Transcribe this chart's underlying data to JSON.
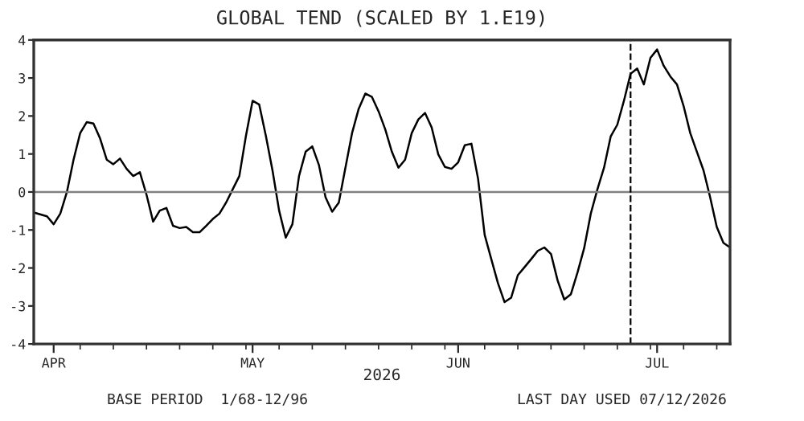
{
  "chart_data": {
    "type": "line",
    "title": "GLOBAL TEND (SCALED BY 1.E19)",
    "xlabel": "2026",
    "series": [
      {
        "color": "#000000",
        "x": [
          "2026-03-29",
          "2026-03-31",
          "2026-04-01",
          "2026-04-02",
          "2026-04-03",
          "2026-04-04",
          "2026-04-05",
          "2026-04-06",
          "2026-04-07",
          "2026-04-08",
          "2026-04-09",
          "2026-04-10",
          "2026-04-11",
          "2026-04-12",
          "2026-04-13",
          "2026-04-14",
          "2026-04-15",
          "2026-04-16",
          "2026-04-17",
          "2026-04-18",
          "2026-04-19",
          "2026-04-20",
          "2026-04-21",
          "2026-04-22",
          "2026-04-23",
          "2026-04-24",
          "2026-04-25",
          "2026-04-26",
          "2026-04-27",
          "2026-04-28",
          "2026-04-29",
          "2026-04-30",
          "2026-05-01",
          "2026-05-02",
          "2026-05-03",
          "2026-05-04",
          "2026-05-05",
          "2026-05-06",
          "2026-05-07",
          "2026-05-08",
          "2026-05-09",
          "2026-05-10",
          "2026-05-11",
          "2026-05-12",
          "2026-05-13",
          "2026-05-14",
          "2026-05-15",
          "2026-05-16",
          "2026-05-17",
          "2026-05-18",
          "2026-05-19",
          "2026-05-20",
          "2026-05-21",
          "2026-05-22",
          "2026-05-23",
          "2026-05-24",
          "2026-05-25",
          "2026-05-26",
          "2026-05-27",
          "2026-05-28",
          "2026-05-29",
          "2026-05-30",
          "2026-05-31",
          "2026-06-01",
          "2026-06-02",
          "2026-06-03",
          "2026-06-04",
          "2026-06-05",
          "2026-06-06",
          "2026-06-07",
          "2026-06-08",
          "2026-06-09",
          "2026-06-10",
          "2026-06-11",
          "2026-06-12",
          "2026-06-13",
          "2026-06-14",
          "2026-06-15",
          "2026-06-16",
          "2026-06-17",
          "2026-06-18",
          "2026-06-19",
          "2026-06-20",
          "2026-06-21",
          "2026-06-22",
          "2026-06-23",
          "2026-06-24",
          "2026-06-25",
          "2026-06-26",
          "2026-06-27",
          "2026-06-28",
          "2026-06-29",
          "2026-06-30",
          "2026-07-01",
          "2026-07-02",
          "2026-07-03",
          "2026-07-04",
          "2026-07-05",
          "2026-07-06",
          "2026-07-07",
          "2026-07-08",
          "2026-07-09",
          "2026-07-10",
          "2026-07-11",
          "2026-07-12"
        ],
        "values": [
          -0.54,
          -0.64,
          -0.85,
          -0.57,
          0,
          0.85,
          1.55,
          1.84,
          1.8,
          1.41,
          0.85,
          0.73,
          0.88,
          0.61,
          0.42,
          0.52,
          -0.07,
          -0.78,
          -0.49,
          -0.42,
          -0.89,
          -0.95,
          -0.92,
          -1.06,
          -1.06,
          -0.89,
          -0.71,
          -0.57,
          -0.28,
          0.07,
          0.42,
          1.48,
          2.4,
          2.3,
          1.48,
          0.57,
          -0.49,
          -1.2,
          -0.85,
          0.42,
          1.06,
          1.2,
          0.71,
          -0.14,
          -0.52,
          -0.28,
          0.64,
          1.55,
          2.19,
          2.59,
          2.5,
          2.12,
          1.65,
          1.06,
          0.64,
          0.85,
          1.55,
          1.91,
          2.08,
          1.7,
          0.99,
          0.66,
          0.61,
          0.78,
          1.23,
          1.27,
          0.35,
          -1.13,
          -1.77,
          -2.4,
          -2.9,
          -2.78,
          -2.19,
          -1.98,
          -1.77,
          -1.55,
          -1.46,
          -1.63,
          -2.33,
          -2.83,
          -2.69,
          -2.12,
          -1.48,
          -0.57,
          0.07,
          0.64,
          1.46,
          1.77,
          2.4,
          3.11,
          3.25,
          2.83,
          3.53,
          3.75,
          3.32,
          3.04,
          2.83,
          2.26,
          1.55,
          1.06,
          0.57,
          -0.14,
          -0.92,
          -1.34,
          -1.46
        ]
      }
    ],
    "xlim": [
      "2026-03-29",
      "2026-07-12"
    ],
    "xticks": [
      {
        "value": "2026-04-01",
        "label": "APR"
      },
      {
        "value": "2026-04-05",
        "label": null
      },
      {
        "value": "2026-04-10",
        "label": null
      },
      {
        "value": "2026-04-15",
        "label": null
      },
      {
        "value": "2026-04-20",
        "label": null
      },
      {
        "value": "2026-04-25",
        "label": null
      },
      {
        "value": "2026-04-30",
        "label": null
      },
      {
        "value": "2026-05-01",
        "label": "MAY"
      },
      {
        "value": "2026-05-05",
        "label": null
      },
      {
        "value": "2026-05-10",
        "label": null
      },
      {
        "value": "2026-05-15",
        "label": null
      },
      {
        "value": "2026-05-20",
        "label": null
      },
      {
        "value": "2026-05-25",
        "label": null
      },
      {
        "value": "2026-05-30",
        "label": null
      },
      {
        "value": "2026-06-01",
        "label": "JUN"
      },
      {
        "value": "2026-06-05",
        "label": null
      },
      {
        "value": "2026-06-10",
        "label": null
      },
      {
        "value": "2026-06-15",
        "label": null
      },
      {
        "value": "2026-06-20",
        "label": null
      },
      {
        "value": "2026-06-25",
        "label": null
      },
      {
        "value": "2026-06-30",
        "label": null
      },
      {
        "value": "2026-07-01",
        "label": "JUL"
      },
      {
        "value": "2026-07-05",
        "label": null
      },
      {
        "value": "2026-07-10",
        "label": null
      }
    ],
    "ylim": [
      -4,
      4
    ],
    "yticks": [
      -4,
      -3,
      -2,
      -1,
      0,
      1,
      2,
      3,
      4
    ],
    "ref_lines": [
      {
        "axis": "y",
        "value": 0,
        "color": "#808080",
        "line_style": "solid"
      },
      {
        "axis": "x",
        "value": "2026-06-27",
        "color": "#000000",
        "line_style": "dashed"
      }
    ],
    "grid": false,
    "legend": false,
    "annotations": [
      "BASE PERIOD  1/68-12/96",
      "LAST DAY USED 07/12/2026"
    ]
  }
}
